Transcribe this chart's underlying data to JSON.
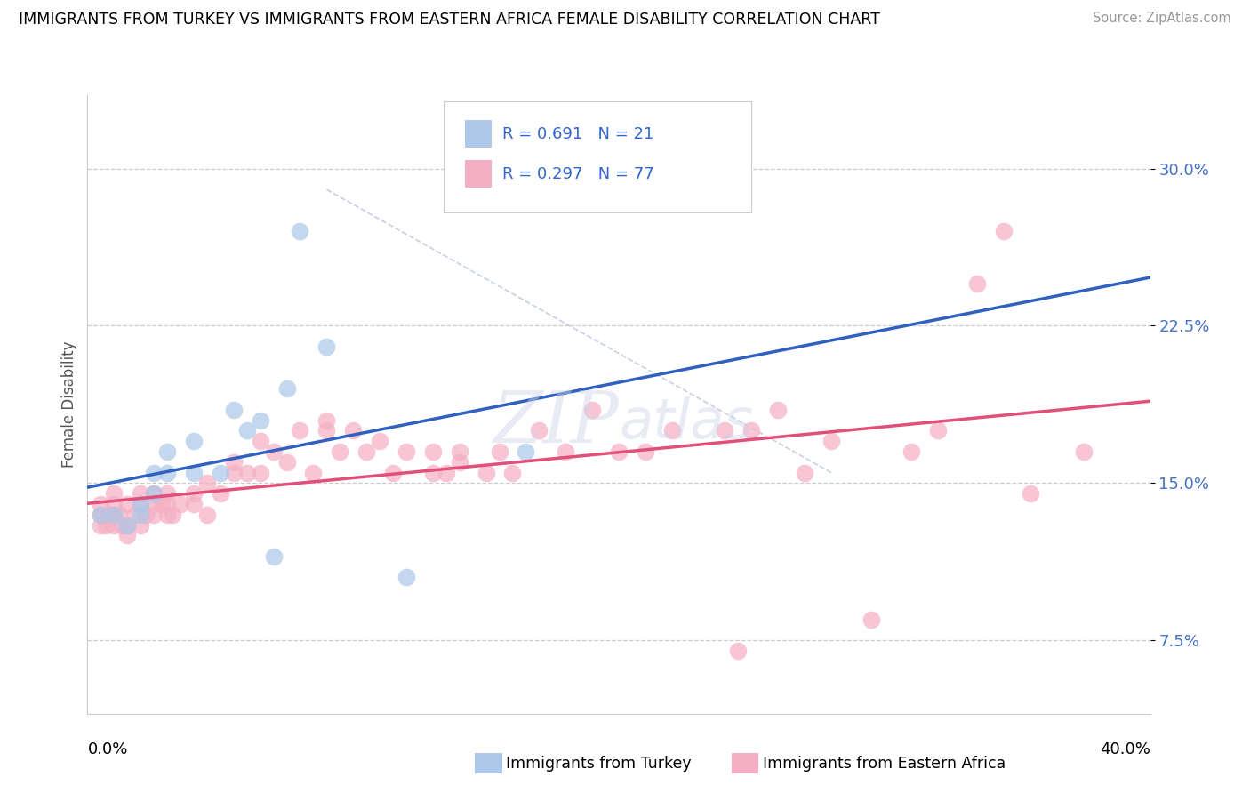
{
  "title": "IMMIGRANTS FROM TURKEY VS IMMIGRANTS FROM EASTERN AFRICA FEMALE DISABILITY CORRELATION CHART",
  "source": "Source: ZipAtlas.com",
  "ylabel": "Female Disability",
  "ytick_vals": [
    0.075,
    0.15,
    0.225,
    0.3
  ],
  "xlim": [
    0.0,
    0.4
  ],
  "ylim": [
    0.04,
    0.335
  ],
  "legend_r1": "R = 0.691   N = 21",
  "legend_r2": "R = 0.297   N = 77",
  "color_turkey": "#adc8e8",
  "color_eastern": "#f5afc4",
  "line_color_turkey": "#3060c0",
  "line_color_eastern": "#e0507a",
  "watermark": "ZIPatlas",
  "turkey_x": [
    0.005,
    0.01,
    0.015,
    0.02,
    0.02,
    0.025,
    0.025,
    0.03,
    0.03,
    0.04,
    0.04,
    0.05,
    0.055,
    0.06,
    0.065,
    0.07,
    0.075,
    0.08,
    0.09,
    0.12,
    0.165
  ],
  "turkey_y": [
    0.135,
    0.135,
    0.13,
    0.135,
    0.14,
    0.145,
    0.155,
    0.155,
    0.165,
    0.155,
    0.17,
    0.155,
    0.185,
    0.175,
    0.18,
    0.115,
    0.195,
    0.27,
    0.215,
    0.105,
    0.165
  ],
  "eastern_x": [
    0.005,
    0.005,
    0.005,
    0.007,
    0.008,
    0.01,
    0.01,
    0.01,
    0.01,
    0.012,
    0.013,
    0.015,
    0.015,
    0.015,
    0.018,
    0.02,
    0.02,
    0.02,
    0.022,
    0.025,
    0.025,
    0.025,
    0.028,
    0.03,
    0.03,
    0.03,
    0.032,
    0.035,
    0.04,
    0.04,
    0.045,
    0.045,
    0.05,
    0.055,
    0.055,
    0.06,
    0.065,
    0.065,
    0.07,
    0.075,
    0.08,
    0.085,
    0.09,
    0.09,
    0.095,
    0.1,
    0.105,
    0.11,
    0.115,
    0.12,
    0.13,
    0.13,
    0.135,
    0.14,
    0.14,
    0.15,
    0.155,
    0.16,
    0.17,
    0.18,
    0.19,
    0.2,
    0.21,
    0.22,
    0.24,
    0.245,
    0.25,
    0.26,
    0.27,
    0.28,
    0.295,
    0.31,
    0.32,
    0.335,
    0.345,
    0.355,
    0.375
  ],
  "eastern_y": [
    0.135,
    0.14,
    0.13,
    0.13,
    0.135,
    0.13,
    0.135,
    0.14,
    0.145,
    0.135,
    0.13,
    0.14,
    0.13,
    0.125,
    0.135,
    0.13,
    0.14,
    0.145,
    0.135,
    0.145,
    0.14,
    0.135,
    0.14,
    0.135,
    0.14,
    0.145,
    0.135,
    0.14,
    0.145,
    0.14,
    0.135,
    0.15,
    0.145,
    0.155,
    0.16,
    0.155,
    0.17,
    0.155,
    0.165,
    0.16,
    0.175,
    0.155,
    0.175,
    0.18,
    0.165,
    0.175,
    0.165,
    0.17,
    0.155,
    0.165,
    0.155,
    0.165,
    0.155,
    0.165,
    0.16,
    0.155,
    0.165,
    0.155,
    0.175,
    0.165,
    0.185,
    0.165,
    0.165,
    0.175,
    0.175,
    0.07,
    0.175,
    0.185,
    0.155,
    0.17,
    0.085,
    0.165,
    0.175,
    0.245,
    0.27,
    0.145,
    0.165
  ]
}
